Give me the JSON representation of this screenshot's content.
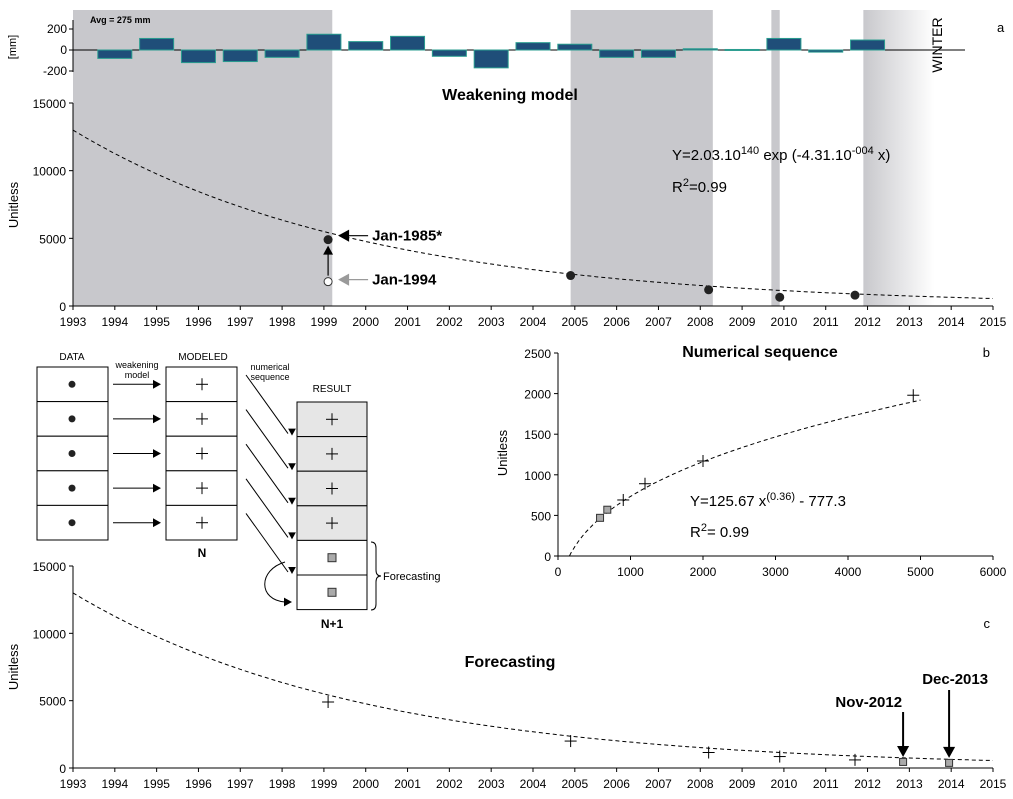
{
  "chart_data": [
    {
      "panel": "a-top",
      "type": "bar",
      "annotation": "Avg = 275 mm",
      "ylabel": "[mm]",
      "yticks": [
        "200",
        "0",
        "-200"
      ],
      "ylim": [
        -200,
        200
      ],
      "side_label": "WINTER",
      "panel_letter": "a",
      "categories": [
        "1994",
        "1995",
        "1996",
        "1997",
        "1998",
        "1999",
        "2000",
        "2001",
        "2002",
        "2003",
        "2004",
        "2005",
        "2006",
        "2007",
        "2008",
        "2009",
        "2010",
        "2011",
        "2012"
      ],
      "values": [
        -80,
        110,
        -120,
        -110,
        -70,
        150,
        80,
        130,
        -60,
        -170,
        70,
        55,
        -70,
        -70,
        12,
        5,
        110,
        -20,
        95
      ],
      "shaded_spans": [
        [
          1993,
          1999.2
        ],
        [
          2004.9,
          2008.3
        ],
        [
          2009.7,
          2009.9
        ],
        [
          2011.9,
          2013.6
        ]
      ],
      "colors": {
        "bar": "#1f4e79",
        "bar_edge": "#2a9d8f",
        "shade": "#c8c8cc"
      }
    },
    {
      "panel": "a",
      "type": "scatter",
      "title": "Weakening model",
      "ylabel": "Unitless",
      "ylim": [
        0,
        15000
      ],
      "xlim": [
        1993,
        2015
      ],
      "yticks": [
        "0",
        "5000",
        "10000",
        "15000"
      ],
      "xticks": [
        "1993",
        "1994",
        "1995",
        "1996",
        "1997",
        "1998",
        "1999",
        "2000",
        "2001",
        "2002",
        "2003",
        "2004",
        "2005",
        "2006",
        "2007",
        "2008",
        "2009",
        "2010",
        "2011",
        "2012",
        "2013",
        "2014",
        "2015"
      ],
      "equation": "Y=2.03.10",
      "equation_sup": "140",
      "equation_rest": " exp (-4.31.10",
      "equation_sup2": "-004",
      "equation_end": " x)",
      "r2_prefix": "R",
      "r2_sup": "2",
      "r2_value": "=0.99",
      "points": [
        {
          "x": 1999.1,
          "y": 4900
        },
        {
          "x": 2004.9,
          "y": 2250
        },
        {
          "x": 2008.2,
          "y": 1200
        },
        {
          "x": 2009.9,
          "y": 650
        },
        {
          "x": 2011.7,
          "y": 800
        }
      ],
      "open_point": {
        "x": 1999.1,
        "y": 1800
      },
      "curve_a": 13000,
      "curve_k": 0.1433,
      "annot_dark": "Jan-1985*",
      "annot_gray": "Jan-1994",
      "shaded_spans": [
        [
          1993,
          1999.2
        ],
        [
          2004.9,
          2008.3
        ],
        [
          2009.7,
          2009.9
        ],
        [
          2011.9,
          2013.6
        ]
      ],
      "colors": {
        "shade": "#c8c8cc",
        "gray_text": "#9a9a9a"
      }
    },
    {
      "panel": "b",
      "type": "scatter",
      "title": "Numerical sequence",
      "panel_letter": "b",
      "ylabel": "Unitless",
      "xlim": [
        0,
        6000
      ],
      "ylim": [
        0,
        2500
      ],
      "xticks": [
        "0",
        "1000",
        "2000",
        "3000",
        "4000",
        "5000",
        "6000"
      ],
      "yticks": [
        "0",
        "500",
        "1000",
        "1500",
        "2000",
        "2500"
      ],
      "equation": "Y=125.67 x",
      "equation_sup": "(0.36)",
      "equation_end": " - 777.3",
      "r2_prefix": "R",
      "r2_sup": "2",
      "r2_value": "= 0.99",
      "plus_points": [
        {
          "x": 900,
          "y": 690
        },
        {
          "x": 1200,
          "y": 890
        },
        {
          "x": 2000,
          "y": 1170
        },
        {
          "x": 4900,
          "y": 1980
        }
      ],
      "square_points": [
        {
          "x": 580,
          "y": 470
        },
        {
          "x": 680,
          "y": 570
        }
      ]
    },
    {
      "panel": "c",
      "type": "line",
      "title": "Forecasting",
      "panel_letter": "c",
      "ylabel": "Unitless",
      "xlim": [
        1993,
        2015
      ],
      "ylim": [
        0,
        15000
      ],
      "yticks": [
        "0",
        "5000",
        "10000",
        "15000"
      ],
      "xticks": [
        "1993",
        "1994",
        "1995",
        "1996",
        "1997",
        "1998",
        "1999",
        "2000",
        "2001",
        "2002",
        "2003",
        "2004",
        "2005",
        "2006",
        "2007",
        "2008",
        "2009",
        "2010",
        "2011",
        "2012",
        "2013",
        "2014",
        "2015"
      ],
      "plus_points": [
        {
          "x": 1999.1,
          "y": 4900
        },
        {
          "x": 2004.9,
          "y": 2000
        },
        {
          "x": 2008.2,
          "y": 1150
        },
        {
          "x": 2009.9,
          "y": 850
        },
        {
          "x": 2011.7,
          "y": 600
        }
      ],
      "square_points": [
        {
          "x": 2012.85,
          "y": 450
        },
        {
          "x": 2013.95,
          "y": 380
        }
      ],
      "annot_1": "Nov-2012",
      "annot_2": "Dec-2013",
      "curve_a": 13000,
      "curve_k": 0.1433
    }
  ],
  "diagram": {
    "col_data": "DATA",
    "col_modeled": "MODELED",
    "col_result": "RESULT",
    "arrow1_label_1": "weakening",
    "arrow1_label_2": "model",
    "arrow2_label_1": "numerical",
    "arrow2_label_2": "sequence",
    "n_label": "N",
    "n1_label": "N+1",
    "forecasting_label": "Forecasting"
  }
}
